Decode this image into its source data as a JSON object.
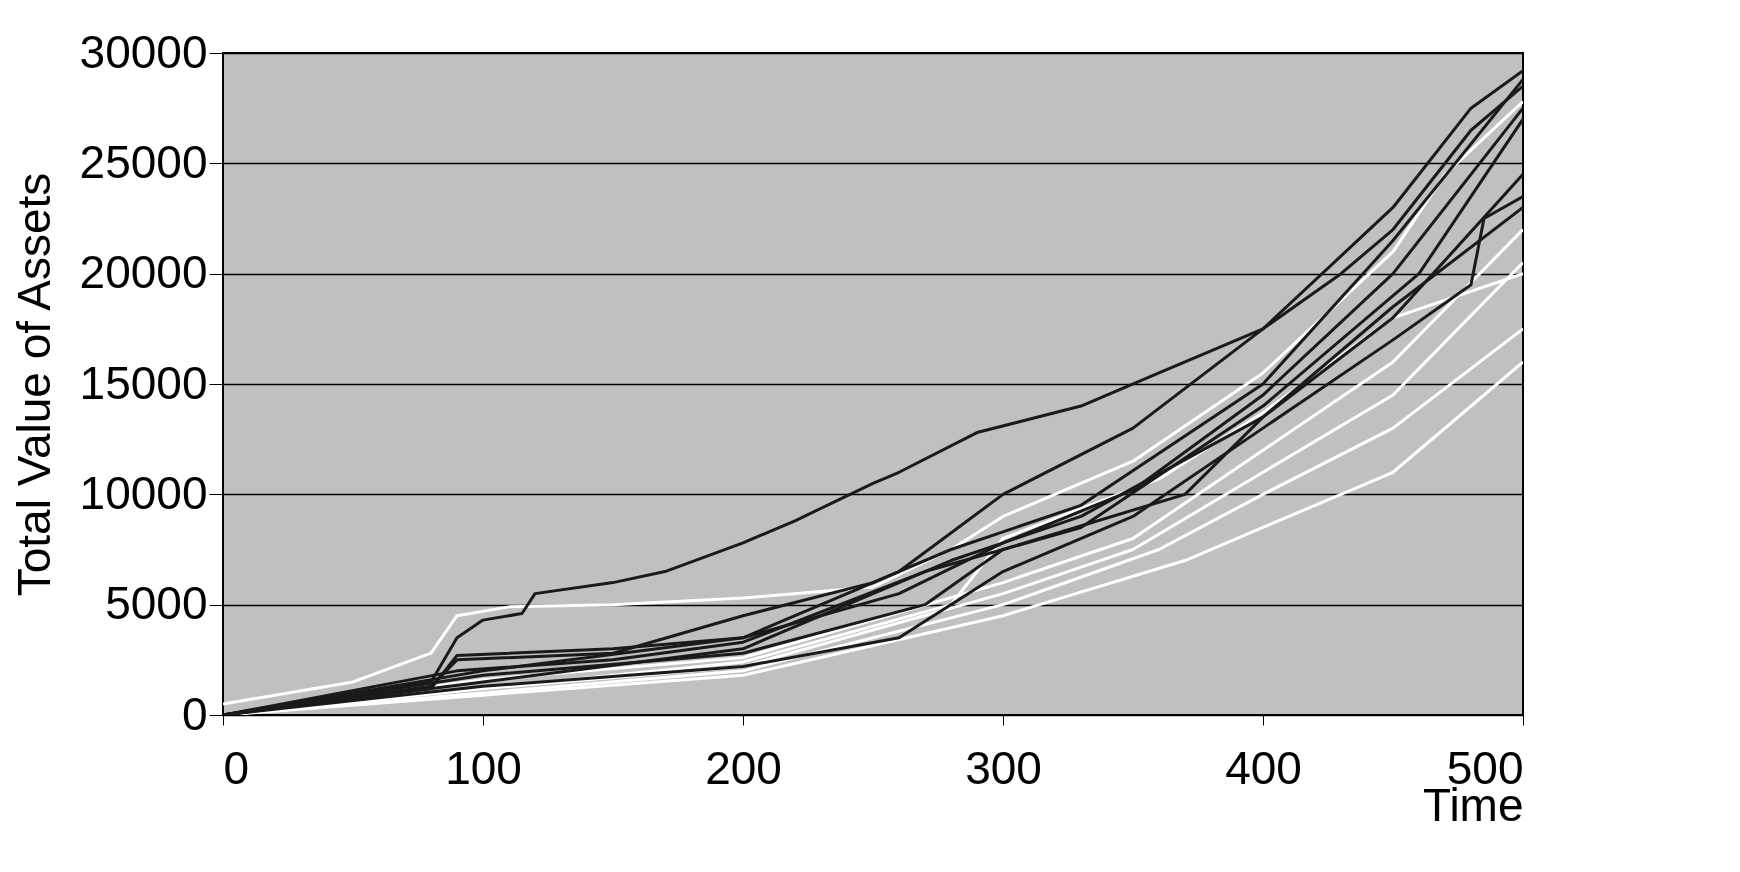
{
  "chart_data": {
    "type": "line",
    "xlabel": "Time",
    "ylabel": "Total Value of Assets",
    "xlim": [
      0,
      500
    ],
    "ylim": [
      0,
      30000
    ],
    "xticks": [
      0,
      100,
      200,
      300,
      400,
      500
    ],
    "yticks": [
      0,
      5000,
      10000,
      15000,
      20000,
      25000,
      30000
    ],
    "grid": "y",
    "legend": false,
    "marker": "none",
    "line_style": "solid",
    "series": [
      {
        "color": "#ffffff",
        "x": [
          0,
          50,
          80,
          90,
          110,
          150,
          200,
          250,
          280,
          300,
          350,
          400,
          450,
          470,
          500
        ],
        "values": [
          500,
          1500,
          2800,
          4500,
          4900,
          5000,
          5300,
          5800,
          7500,
          9000,
          11500,
          15500,
          21000,
          24500,
          27800
        ]
      },
      {
        "color": "#ffffff",
        "x": [
          0,
          100,
          200,
          300,
          350,
          400,
          450,
          500
        ],
        "values": [
          0,
          1600,
          2600,
          6000,
          8000,
          12000,
          16000,
          22000
        ]
      },
      {
        "color": "#ffffff",
        "x": [
          0,
          100,
          200,
          300,
          350,
          400,
          450,
          500
        ],
        "values": [
          0,
          1200,
          2200,
          5500,
          7500,
          11000,
          14500,
          20500
        ]
      },
      {
        "color": "#ffffff",
        "x": [
          0,
          100,
          200,
          300,
          360,
          400,
          450,
          500
        ],
        "values": [
          0,
          1000,
          2000,
          5000,
          7500,
          10000,
          13000,
          17500
        ]
      },
      {
        "color": "#ffffff",
        "x": [
          0,
          100,
          200,
          300,
          370,
          400,
          450,
          500
        ],
        "values": [
          0,
          900,
          1800,
          4500,
          7000,
          8500,
          11000,
          16000
        ]
      },
      {
        "color": "#ffffff",
        "x": [
          0,
          100,
          200,
          280,
          300,
          360,
          400,
          450,
          500
        ],
        "values": [
          0,
          1200,
          2400,
          5000,
          8000,
          10700,
          13700,
          18000,
          20000
        ]
      },
      {
        "color": "#1a1a1a",
        "x": [
          0,
          50,
          80,
          90,
          100,
          115,
          120,
          150,
          170,
          200,
          220,
          250,
          260,
          290,
          330,
          360,
          400,
          430,
          450,
          480,
          500
        ],
        "values": [
          0,
          900,
          1500,
          3500,
          4300,
          4600,
          5500,
          6000,
          6500,
          7800,
          8800,
          10500,
          11000,
          12800,
          14000,
          15500,
          17500,
          20000,
          22000,
          26500,
          28500
        ]
      },
      {
        "color": "#1a1a1a",
        "x": [
          0,
          80,
          90,
          150,
          200,
          260,
          300,
          350,
          400,
          450,
          480,
          500
        ],
        "values": [
          0,
          1200,
          2700,
          3000,
          3500,
          6500,
          10000,
          13000,
          17500,
          23000,
          27500,
          29200
        ]
      },
      {
        "color": "#1a1a1a",
        "x": [
          0,
          80,
          90,
          150,
          200,
          250,
          280,
          330,
          400,
          450,
          500
        ],
        "values": [
          0,
          1300,
          2500,
          2800,
          4500,
          6000,
          7500,
          9500,
          15000,
          21500,
          28800
        ]
      },
      {
        "color": "#1a1a1a",
        "x": [
          0,
          90,
          150,
          200,
          270,
          330,
          400,
          460,
          500
        ],
        "values": [
          0,
          2000,
          2500,
          3300,
          6500,
          8500,
          14000,
          20000,
          27000
        ]
      },
      {
        "color": "#1a1a1a",
        "x": [
          0,
          100,
          200,
          280,
          330,
          400,
          450,
          500
        ],
        "values": [
          0,
          1500,
          3000,
          7000,
          9000,
          13500,
          18000,
          24500
        ]
      },
      {
        "color": "#1a1a1a",
        "x": [
          0,
          100,
          200,
          260,
          300,
          350,
          400,
          450,
          480,
          485,
          500
        ],
        "values": [
          0,
          1300,
          2200,
          3500,
          6500,
          9000,
          13000,
          17000,
          19500,
          22500,
          23500
        ]
      },
      {
        "color": "#1a1a1a",
        "x": [
          0,
          100,
          200,
          270,
          300,
          370,
          400,
          450,
          500
        ],
        "values": [
          0,
          1800,
          2800,
          5000,
          7500,
          10000,
          13500,
          18500,
          23000
        ]
      },
      {
        "color": "#1a1a1a",
        "x": [
          0,
          100,
          200,
          260,
          300,
          350,
          400,
          450,
          500
        ],
        "values": [
          0,
          2000,
          3500,
          5500,
          7800,
          10200,
          14500,
          20000,
          27500
        ]
      }
    ]
  }
}
